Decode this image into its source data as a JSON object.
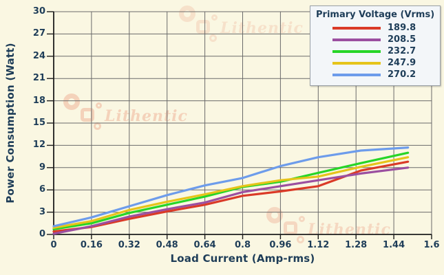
{
  "watermark": {
    "text": "Lithentic",
    "color": "#f4ccb4"
  },
  "style": {
    "page_bg": "#faf7e2",
    "text_color": "#1e3d58",
    "grid_color": "#6a6a6a",
    "axis_color": "#1c1c1c",
    "legend_bg": "#f3f6f9",
    "legend_border": "#9aa0a8"
  },
  "chart_data": {
    "type": "line",
    "title": "",
    "xlabel": "Load Current (Amp-rms)",
    "ylabel": "Power Consumption (Watt)",
    "xlim": [
      0,
      1.6
    ],
    "ylim": [
      0,
      30
    ],
    "grid": true,
    "legend_title": "Primary Voltage (Vrms)",
    "legend_position": "top-right",
    "x_tick_values": [
      0,
      0.16,
      0.32,
      0.48,
      0.64,
      0.8,
      0.96,
      1.12,
      1.28,
      1.44,
      1.6
    ],
    "x_tick_labels": [
      "0",
      "0.16",
      "0.32",
      "0.48",
      "0.64",
      "0.8",
      "0.96",
      "1.12",
      "1.28",
      "1.44",
      "1.6"
    ],
    "y_tick_values": [
      0,
      3,
      6,
      9,
      12,
      15,
      18,
      21,
      24,
      27,
      30
    ],
    "y_tick_labels": [
      "0",
      "3",
      "6",
      "9",
      "12",
      "15",
      "18",
      "21",
      "24",
      "27",
      "30"
    ],
    "x": [
      0,
      0.16,
      0.32,
      0.48,
      0.64,
      0.8,
      0.96,
      1.12,
      1.3,
      1.5
    ],
    "series": [
      {
        "name": "189.8",
        "color": "#da3a27",
        "values": [
          0.4,
          1.0,
          2.1,
          3.1,
          4.0,
          5.2,
          5.8,
          6.5,
          8.6,
          9.8
        ]
      },
      {
        "name": "208.5",
        "color": "#9b4fa0",
        "values": [
          0.1,
          1.1,
          2.4,
          3.4,
          4.3,
          5.7,
          6.5,
          7.3,
          8.2,
          9.0
        ]
      },
      {
        "name": "232.7",
        "color": "#27d527",
        "values": [
          0.7,
          1.5,
          2.9,
          4.0,
          5.1,
          6.4,
          7.1,
          8.3,
          9.6,
          11.0
        ]
      },
      {
        "name": "247.9",
        "color": "#e6c41a",
        "values": [
          0.9,
          1.8,
          3.3,
          4.4,
          5.4,
          6.5,
          7.3,
          7.8,
          9.1,
          10.4
        ]
      },
      {
        "name": "270.2",
        "color": "#6d9ceb",
        "values": [
          1.1,
          2.3,
          3.8,
          5.3,
          6.6,
          7.6,
          9.2,
          10.4,
          11.3,
          11.7
        ]
      }
    ]
  }
}
